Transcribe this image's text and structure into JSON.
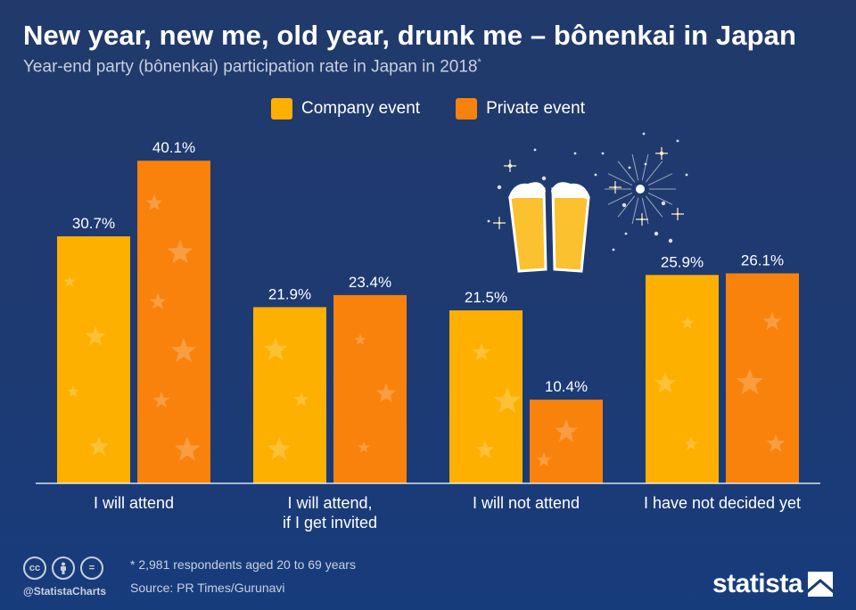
{
  "title": "New year, new me, old year, drunk me – bônenkai in Japan",
  "subtitle": "Year-end party (bônenkai) participation rate in Japan in 2018",
  "subtitle_mark": "*",
  "legend": [
    {
      "label": "Company event",
      "color": "#fdb000"
    },
    {
      "label": "Private event",
      "color": "#f8820c"
    }
  ],
  "chart_data": {
    "type": "bar",
    "categories": [
      "I will attend",
      "I will attend,\nif I get invited",
      "I will not attend",
      "I have not decided yet"
    ],
    "series": [
      {
        "name": "Company event",
        "values": [
          30.7,
          21.9,
          21.5,
          25.9
        ],
        "color": "#fdb000"
      },
      {
        "name": "Private event",
        "values": [
          40.1,
          23.4,
          10.4,
          26.1
        ],
        "color": "#f8820c"
      }
    ],
    "value_suffix": "%",
    "ylim": [
      0,
      45
    ],
    "grid": false
  },
  "footer": {
    "note": "* 2,981 respondents aged 20 to 69 years",
    "source": "Source: PR Times/Gurunavi",
    "handle": "@StatistaCharts",
    "cc_icons": [
      "cc",
      "by",
      "="
    ]
  },
  "brand": "statista",
  "illustration": "beer-toast-fireworks-icon"
}
